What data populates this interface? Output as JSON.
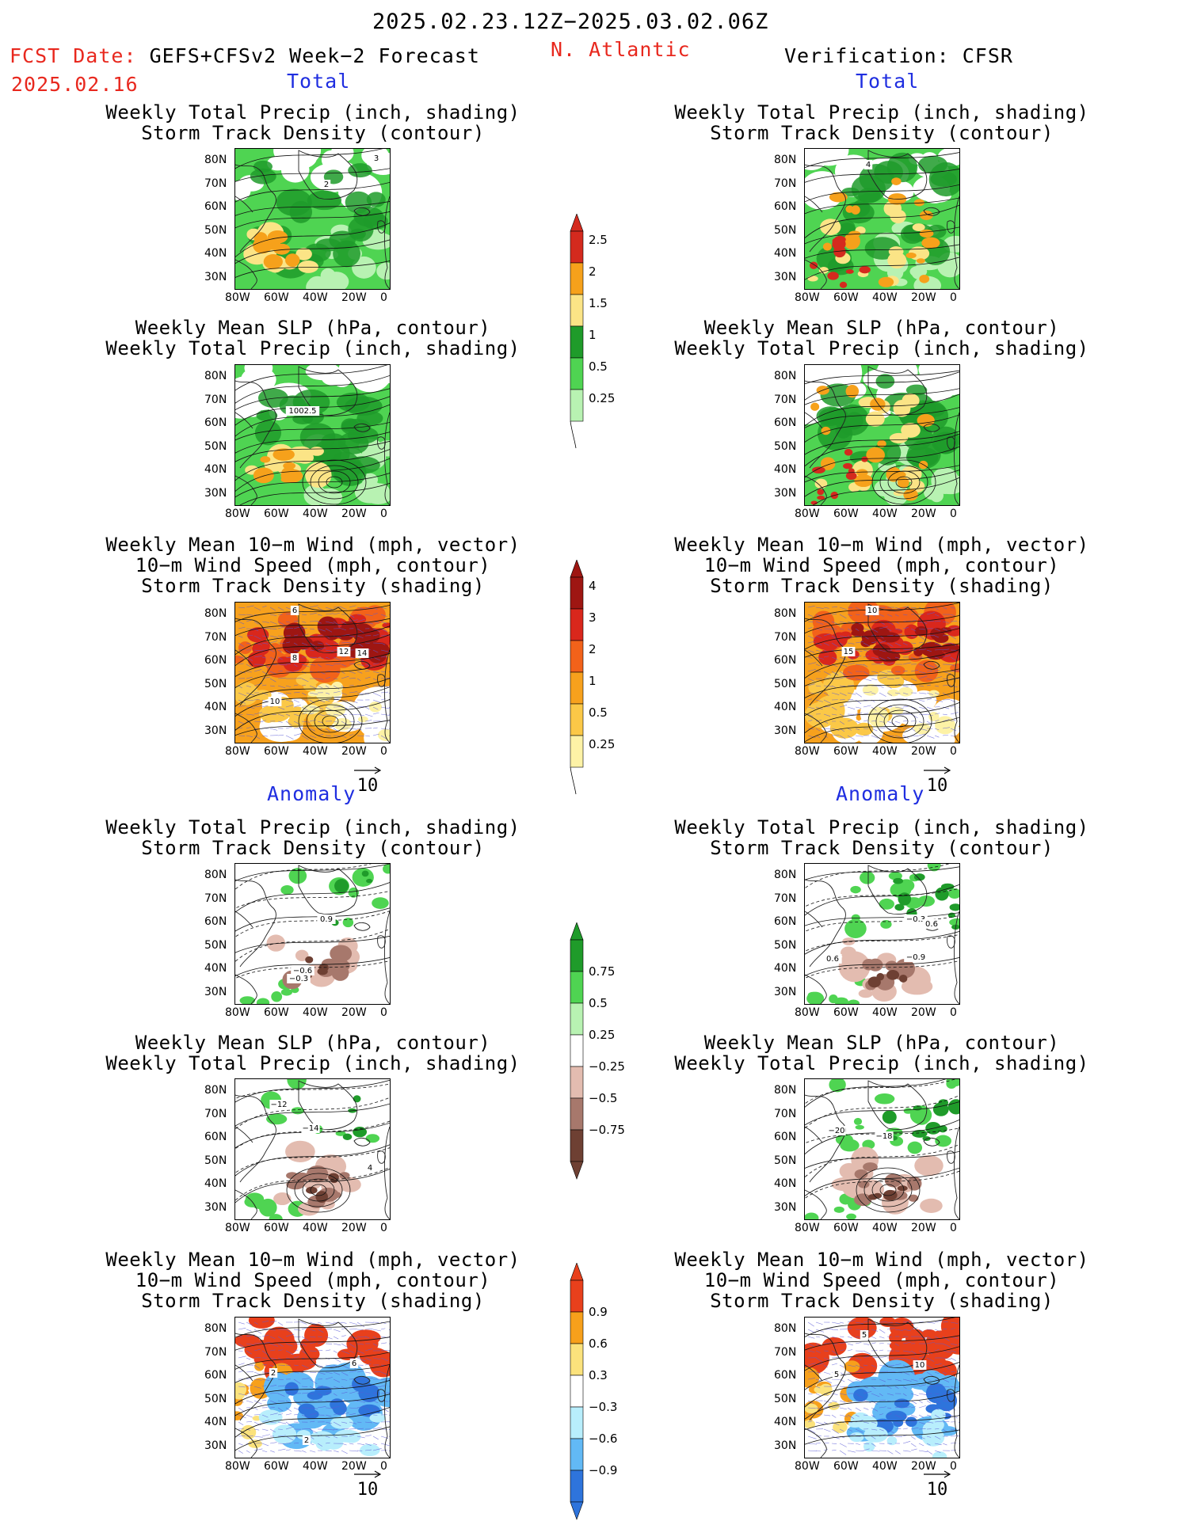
{
  "header": {
    "period": "2025.02.23.12Z−2025.03.02.06Z",
    "fcst_label": "FCST Date: ",
    "fcst_model": "GEFS+CFSv2 Week−2 Forecast",
    "fcst_date": "2025.02.16",
    "region": "N. Atlantic",
    "verification": "Verification: CFSR"
  },
  "sections": {
    "total": "Total",
    "anomaly": "Anomaly"
  },
  "titles": {
    "precip_track": [
      "Weekly Total Precip (inch, shading)",
      "Storm Track Density (contour)"
    ],
    "slp_precip": [
      "Weekly Mean SLP (hPa, contour)",
      "Weekly Total Precip (inch, shading)"
    ],
    "wind": [
      "Weekly Mean 10−m Wind (mph, vector)",
      "10−m Wind Speed (mph, contour)",
      "Storm Track Density (shading)"
    ]
  },
  "axes": {
    "lat_labels": [
      "80N",
      "70N",
      "60N",
      "50N",
      "40N",
      "30N"
    ],
    "lon_labels": [
      "80W",
      "60W",
      "40W",
      "20W",
      "0"
    ]
  },
  "vector_ref": "10",
  "colorbars": {
    "precip_total": {
      "labels": [
        "2.5",
        "2",
        "1.5",
        "1",
        "0.5",
        "0.25"
      ],
      "colors": [
        "#d42a1e",
        "#f6a11b",
        "#fbe486",
        "#1f9b2a",
        "#4fd452",
        "#b8f2b2"
      ]
    },
    "track_total": {
      "labels": [
        "4",
        "3",
        "2",
        "1",
        "0.5",
        "0.25"
      ],
      "colors": [
        "#9e1612",
        "#d9271c",
        "#f2621a",
        "#f7a11d",
        "#fbc847",
        "#fdf2a6"
      ]
    },
    "precip_anom": {
      "labels": [
        "0.75",
        "0.5",
        "0.25",
        "−0.25",
        "−0.5",
        "−0.75"
      ],
      "colors": [
        "#1f9b2a",
        "#4fd452",
        "#b8f2b2",
        "#ffffff",
        "#e3bcb0",
        "#a7786c",
        "#6e4033"
      ]
    },
    "track_anom": {
      "labels": [
        "0.9",
        "0.6",
        "0.3",
        "−0.3",
        "−0.6",
        "−0.9"
      ],
      "colors": [
        "#e8401c",
        "#f7a01b",
        "#fbe27c",
        "#ffffff",
        "#b8eefc",
        "#62b9f5",
        "#2e74dc"
      ]
    }
  },
  "contour_labels": {
    "fc_p1": [
      "3",
      "2"
    ],
    "fc_p2": [
      "1002.5"
    ],
    "fc_p3": [
      "6",
      "8",
      "12",
      "14",
      "10"
    ],
    "fc_p4": [
      "0.9",
      "−0.6",
      "−0.3"
    ],
    "fc_p5": [
      "−12",
      "−14",
      "4"
    ],
    "fc_p6": [
      "2",
      "6",
      "2"
    ],
    "ob_p1": [
      "4"
    ],
    "ob_p3": [
      "10",
      "15"
    ],
    "ob_p4": [
      "−0.3",
      "0.6",
      "−0.9",
      "0.6"
    ],
    "ob_p5": [
      "−20",
      "−18"
    ],
    "ob_p6": [
      "5",
      "10",
      "5"
    ]
  }
}
